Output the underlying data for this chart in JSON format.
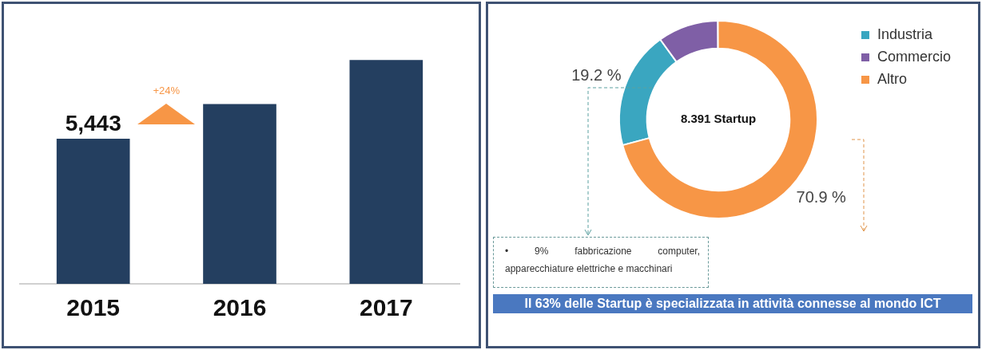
{
  "chart_data": [
    {
      "type": "bar",
      "categories": [
        "2015",
        "2016",
        "2017"
      ],
      "values": [
        5443,
        6745,
        8391
      ],
      "color": "#243f60",
      "value_labels": [
        "5,443",
        null,
        null
      ],
      "annotations": [
        "+24%"
      ],
      "legend": false,
      "grid": false
    },
    {
      "type": "donut",
      "categories": [
        "Industria",
        "Commercio",
        "Altro"
      ],
      "values": [
        19.2,
        9.9,
        70.9
      ],
      "colors": [
        "#3aa6c0",
        "#7f5fa6",
        "#f79646"
      ],
      "value_labels": [
        "19.2 %",
        null,
        "70.9 %"
      ],
      "legend": "right",
      "annotations": [
        "8.391 Startup",
        "• 9% fabbricazione computer, apparecchiature elettriche e macchinari",
        "Il 63% delle Startup è specializzata in attività connesse al mondo ICT"
      ]
    }
  ]
}
